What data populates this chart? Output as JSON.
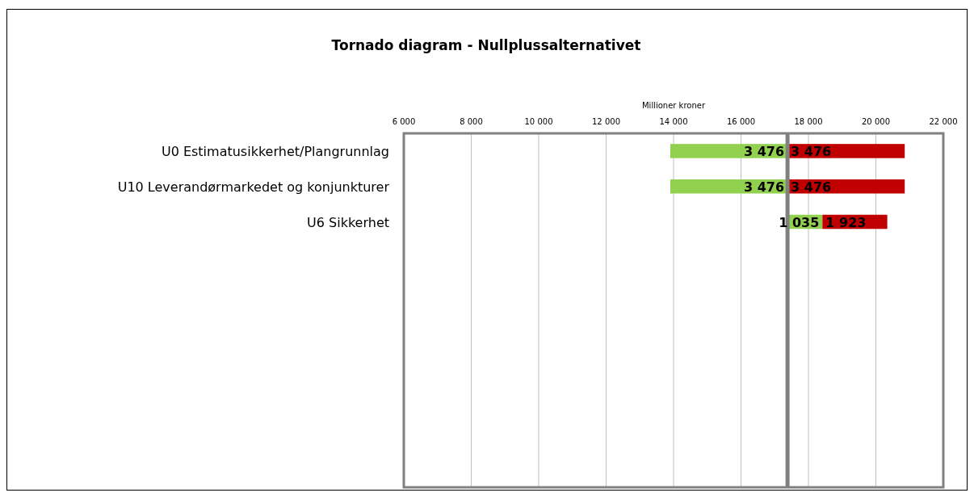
{
  "chart_data": {
    "type": "bar",
    "orientation": "horizontal",
    "title": "Tornado diagram - Nullplussalternativet",
    "xlabel": "Millioner kroner",
    "categories": [
      "U0 Estimatusikkerhet/Plangrunnlag",
      "U10 Leverandørmarkedet og konjunkturer",
      "U6 Sikkerhet",
      null,
      null,
      null,
      null,
      null,
      null,
      null
    ],
    "series": [
      {
        "color": "#92d050",
        "values": [
          3476,
          3476,
          1035,
          null,
          null,
          null,
          null,
          null,
          null,
          null
        ],
        "base": [
          13904,
          13904,
          17380,
          null,
          null,
          null,
          null,
          null,
          null,
          null
        ],
        "value_labels": [
          "3 476",
          "3 476",
          "1 035",
          null,
          null,
          null,
          null,
          null,
          null,
          null
        ]
      },
      {
        "color": "#c00000",
        "values": [
          3476,
          3476,
          1923,
          null,
          null,
          null,
          null,
          null,
          null,
          null
        ],
        "base": [
          17380,
          17380,
          18415,
          null,
          null,
          null,
          null,
          null,
          null,
          null
        ],
        "value_labels": [
          "3 476",
          "3 476",
          "1 923",
          null,
          null,
          null,
          null,
          null,
          null,
          null
        ]
      }
    ],
    "xlim": [
      6000,
      22000
    ],
    "xticks": [
      {
        "value": 6000,
        "label": "6 000"
      },
      {
        "value": 8000,
        "label": "8 000"
      },
      {
        "value": 10000,
        "label": "10 000"
      },
      {
        "value": 12000,
        "label": "12 000"
      },
      {
        "value": 14000,
        "label": "14 000"
      },
      {
        "value": 16000,
        "label": "16 000"
      },
      {
        "value": 18000,
        "label": "18 000"
      },
      {
        "value": 20000,
        "label": "20 000"
      },
      {
        "value": 22000,
        "label": "22 000"
      }
    ],
    "grid": "x",
    "ref_lines": [
      {
        "axis": "x",
        "value": 17380,
        "color": "#808080"
      }
    ]
  }
}
